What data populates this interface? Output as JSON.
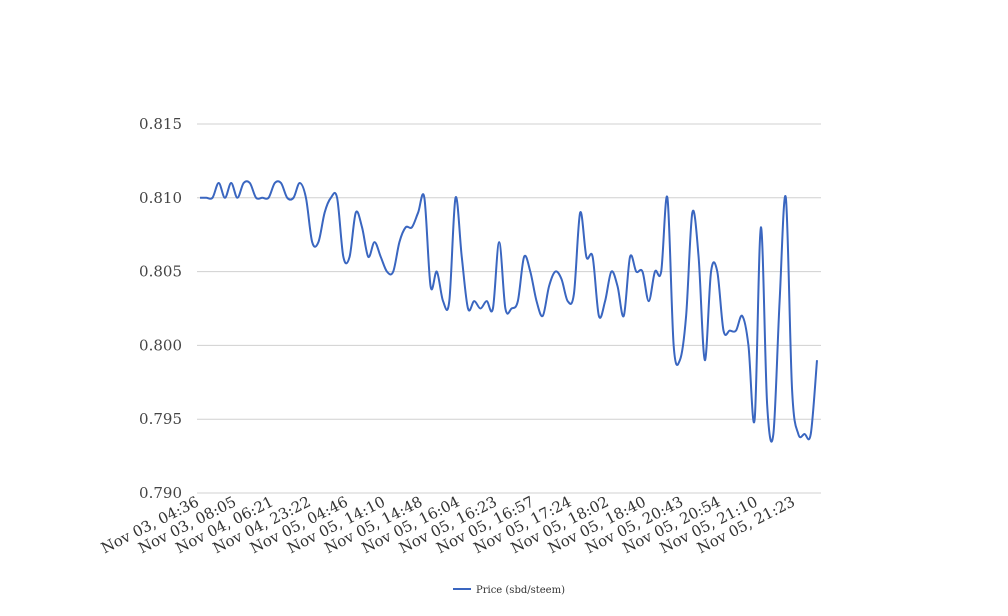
{
  "chart_data": {
    "type": "line",
    "title": "",
    "xlabel": "",
    "ylabel": "",
    "ylim": [
      0.79,
      0.815
    ],
    "y_ticks": [
      "0.815",
      "0.810",
      "0.805",
      "0.800",
      "0.795",
      "0.790"
    ],
    "y_tick_values": [
      0.815,
      0.81,
      0.805,
      0.8,
      0.795,
      0.79
    ],
    "x_tick_labels": [
      "Nov 03, 04:36",
      "Nov 03, 08:05",
      "Nov 04, 06:21",
      "Nov 04, 23:22",
      "Nov 05, 04:46",
      "Nov 05, 14:10",
      "Nov 05, 14:48",
      "Nov 05, 16:04",
      "Nov 05, 16:23",
      "Nov 05, 16:57",
      "Nov 05, 17:24",
      "Nov 05, 18:02",
      "Nov 05, 18:40",
      "Nov 05, 20:43",
      "Nov 05, 20:54",
      "Nov 05, 21:10",
      "Nov 05, 21:23"
    ],
    "grid": true,
    "legend_position": "bottom-center",
    "series": [
      {
        "name": "Price (sbd/steem)",
        "color": "#3a66c0",
        "values": [
          0.81,
          0.81,
          0.81,
          0.811,
          0.81,
          0.811,
          0.81,
          0.811,
          0.811,
          0.81,
          0.81,
          0.81,
          0.811,
          0.811,
          0.81,
          0.81,
          0.811,
          0.81,
          0.807,
          0.807,
          0.809,
          0.81,
          0.81,
          0.806,
          0.806,
          0.809,
          0.808,
          0.806,
          0.807,
          0.806,
          0.805,
          0.805,
          0.807,
          0.808,
          0.808,
          0.809,
          0.81,
          0.804,
          0.805,
          0.803,
          0.803,
          0.81,
          0.806,
          0.8025,
          0.803,
          0.8025,
          0.803,
          0.8025,
          0.807,
          0.8025,
          0.8025,
          0.803,
          0.806,
          0.805,
          0.803,
          0.802,
          0.804,
          0.805,
          0.8045,
          0.803,
          0.8035,
          0.809,
          0.806,
          0.806,
          0.802,
          0.803,
          0.805,
          0.804,
          0.802,
          0.806,
          0.805,
          0.805,
          0.803,
          0.805,
          0.805,
          0.81,
          0.8,
          0.799,
          0.802,
          0.809,
          0.806,
          0.799,
          0.805,
          0.805,
          0.801,
          0.801,
          0.801,
          0.802,
          0.8,
          0.795,
          0.808,
          0.796,
          0.794,
          0.803,
          0.81,
          0.797,
          0.794,
          0.794,
          0.794,
          0.799
        ]
      }
    ]
  }
}
